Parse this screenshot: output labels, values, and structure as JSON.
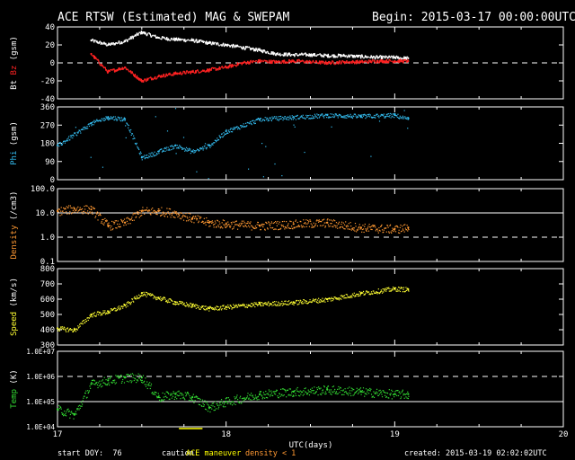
{
  "header": {
    "title": "ACE RTSW (Estimated) MAG & SWEPAM",
    "begin": "Begin: 2015-03-17 00:00:00UTC"
  },
  "footer": {
    "start_doy": "start DOY:  76",
    "caution_label": "caution:",
    "caution_maneuver": "ACE maneuver",
    "caution_density": "density < 1",
    "created": "created: 2015-03-19 02:02:02UTC"
  },
  "colors": {
    "background": "#000000",
    "axis": "#ffffff",
    "bt": "#ffffff",
    "bz": "#ff1a1a",
    "phi": "#33bbee",
    "density": "#ff9933",
    "speed": "#ffff33",
    "temp": "#33dd33",
    "maneuver": "#ffff00"
  },
  "chart_data": {
    "type": "scatter",
    "xlabel": "UTC(days)",
    "xlim": [
      17,
      20
    ],
    "xticks": [
      "17",
      "18",
      "19",
      "20"
    ],
    "grid": false,
    "maneuver_marker_x": [
      17.72,
      17.86
    ],
    "panels": [
      {
        "id": "mag",
        "ylabel_parts": [
          {
            "text": "Bt",
            "color": "#ffffff"
          },
          {
            "text": "Bz",
            "color": "#ff2222"
          },
          {
            "text": "(gsm)",
            "color": "#ffffff"
          }
        ],
        "scale": "linear",
        "ylim": [
          -40,
          40
        ],
        "yticks": [
          "40",
          "20",
          "0",
          "-20",
          "-40"
        ],
        "ytick_values": [
          40,
          20,
          0,
          -20,
          -40
        ],
        "reference_lines": [
          {
            "y": 0,
            "style": "dashed"
          }
        ],
        "series": [
          {
            "name": "Bt",
            "color": "#ffffff",
            "x": [
              17.2,
              17.3,
              17.4,
              17.5,
              17.6,
              17.7,
              17.8,
              17.9,
              18.0,
              18.1,
              18.2,
              18.3,
              18.4,
              18.5,
              18.6,
              18.7,
              18.8,
              18.9,
              19.0,
              19.08
            ],
            "y": [
              25,
              20,
              24,
              34,
              28,
              26,
              25,
              22,
              20,
              17,
              14,
              10,
              9,
              9,
              8,
              8,
              7,
              6,
              6,
              5
            ]
          },
          {
            "name": "Bz",
            "color": "#ff2222",
            "x": [
              17.2,
              17.3,
              17.4,
              17.5,
              17.6,
              17.7,
              17.8,
              17.9,
              18.0,
              18.1,
              18.2,
              18.3,
              18.4,
              18.5,
              18.6,
              18.7,
              18.8,
              18.9,
              19.0,
              19.08
            ],
            "y": [
              10,
              -10,
              -5,
              -20,
              -15,
              -12,
              -10,
              -8,
              -5,
              0,
              2,
              1,
              2,
              1,
              0,
              1,
              1,
              2,
              2,
              2
            ]
          }
        ]
      },
      {
        "id": "phi",
        "ylabel_parts": [
          {
            "text": "Phi",
            "color": "#33bbee"
          },
          {
            "text": "(gsm)",
            "color": "#ffffff"
          }
        ],
        "scale": "linear",
        "ylim": [
          0,
          360
        ],
        "yticks": [
          "360",
          "270",
          "180",
          "90",
          "0"
        ],
        "ytick_values": [
          360,
          270,
          180,
          90,
          0
        ],
        "reference_lines": [],
        "series": [
          {
            "name": "Phi",
            "color": "#33bbee",
            "x": [
              17.0,
              17.2,
              17.3,
              17.4,
              17.5,
              17.6,
              17.7,
              17.8,
              17.9,
              18.0,
              18.2,
              18.4,
              18.6,
              18.8,
              19.0,
              19.08
            ],
            "y": [
              170,
              280,
              310,
              300,
              110,
              140,
              170,
              140,
              170,
              240,
              300,
              310,
              320,
              315,
              320,
              300
            ]
          }
        ]
      },
      {
        "id": "density",
        "ylabel_parts": [
          {
            "text": "Density",
            "color": "#ff9933"
          },
          {
            "text": "(/cm3)",
            "color": "#ffffff"
          }
        ],
        "scale": "log",
        "ylim": [
          0.1,
          100
        ],
        "yticks": [
          "100.0",
          "10.0",
          "1.0",
          "0.1"
        ],
        "ytick_values": [
          100,
          10,
          1,
          0.1
        ],
        "reference_lines": [
          {
            "y": 10,
            "style": "solid"
          },
          {
            "y": 1,
            "style": "dashed"
          }
        ],
        "series": [
          {
            "name": "Density",
            "color": "#ff9933",
            "x": [
              17.0,
              17.1,
              17.2,
              17.3,
              17.4,
              17.5,
              17.6,
              17.7,
              17.8,
              17.9,
              18.0,
              18.2,
              18.4,
              18.6,
              18.8,
              19.0,
              19.08
            ],
            "y": [
              12,
              15,
              14,
              3,
              4,
              12,
              12,
              10,
              6,
              4,
              3.5,
              3,
              3.5,
              4,
              2.5,
              2.2,
              2.5
            ]
          }
        ]
      },
      {
        "id": "speed",
        "ylabel_parts": [
          {
            "text": "Speed",
            "color": "#ffff33"
          },
          {
            "text": "(km/s)",
            "color": "#ffffff"
          }
        ],
        "scale": "linear",
        "ylim": [
          300,
          800
        ],
        "yticks": [
          "800",
          "700",
          "600",
          "500",
          "400",
          "300"
        ],
        "ytick_values": [
          800,
          700,
          600,
          500,
          400,
          300
        ],
        "reference_lines": [],
        "series": [
          {
            "name": "Speed",
            "color": "#ffff33",
            "x": [
              17.0,
              17.1,
              17.2,
              17.3,
              17.4,
              17.5,
              17.6,
              17.7,
              17.8,
              17.9,
              18.0,
              18.2,
              18.4,
              18.6,
              18.8,
              19.0,
              19.08
            ],
            "y": [
              410,
              400,
              500,
              520,
              560,
              640,
              610,
              580,
              560,
              540,
              550,
              570,
              580,
              600,
              640,
              670,
              665
            ]
          }
        ]
      },
      {
        "id": "temp",
        "ylabel_parts": [
          {
            "text": "Temp",
            "color": "#33dd33"
          },
          {
            "text": "(K)",
            "color": "#ffffff"
          }
        ],
        "scale": "log",
        "ylim": [
          10000,
          10000000
        ],
        "yticks": [
          "1.0E+07",
          "1.0E+06",
          "1.0E+05",
          "1.0E+04"
        ],
        "ytick_values": [
          10000000,
          1000000,
          100000,
          10000
        ],
        "reference_lines": [
          {
            "y": 1000000,
            "style": "dashed"
          },
          {
            "y": 100000,
            "style": "solid"
          }
        ],
        "series": [
          {
            "name": "Temp",
            "color": "#33dd33",
            "x": [
              17.0,
              17.1,
              17.2,
              17.3,
              17.4,
              17.5,
              17.6,
              17.7,
              17.8,
              17.9,
              18.0,
              18.2,
              18.4,
              18.6,
              18.8,
              19.0,
              19.08
            ],
            "y": [
              50000,
              30000,
              500000,
              700000,
              900000,
              900000,
              150000,
              200000,
              150000,
              60000,
              100000,
              200000,
              250000,
              300000,
              250000,
              200000,
              200000
            ]
          }
        ]
      }
    ]
  }
}
